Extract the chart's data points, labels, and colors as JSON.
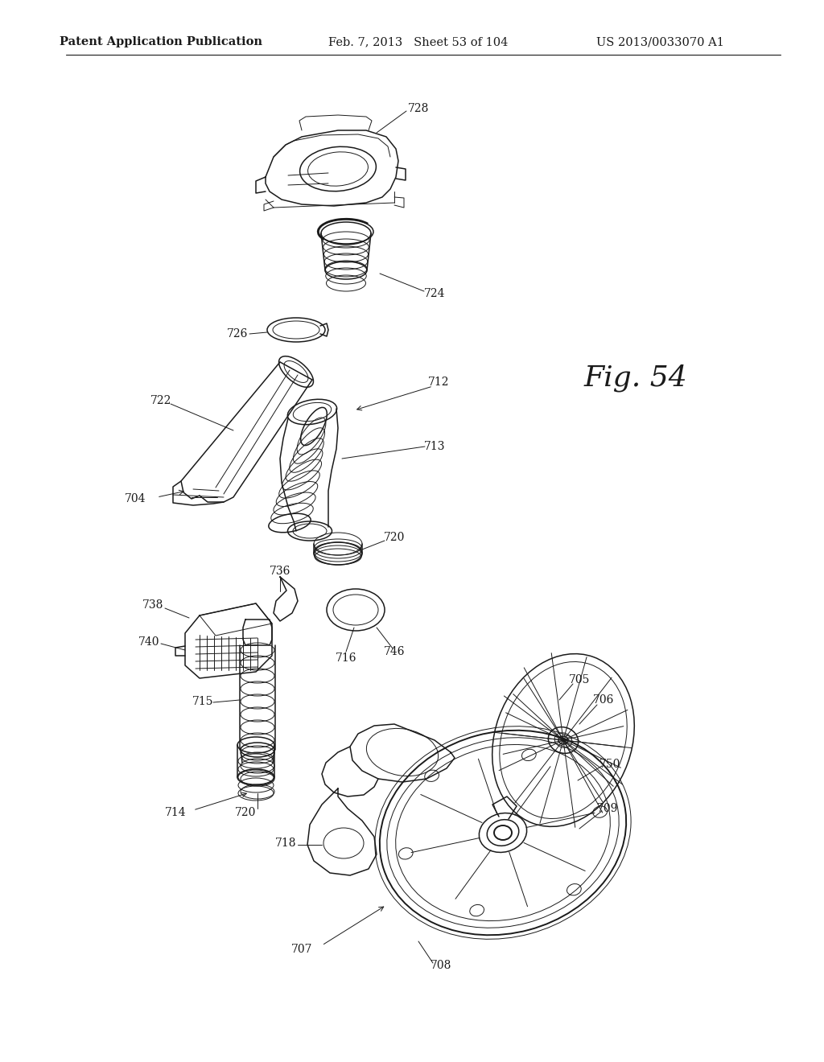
{
  "title_left": "Patent Application Publication",
  "title_mid": "Feb. 7, 2013   Sheet 53 of 104",
  "title_right": "US 2013/0033070 A1",
  "fig_label": "Fig. 54",
  "background_color": "#ffffff",
  "line_color": "#1a1a1a",
  "header_fontsize": 10.5,
  "fig_label_fontsize": 26,
  "ref_fontsize": 10,
  "page_width": 10.24,
  "page_height": 13.2,
  "dpi": 100
}
